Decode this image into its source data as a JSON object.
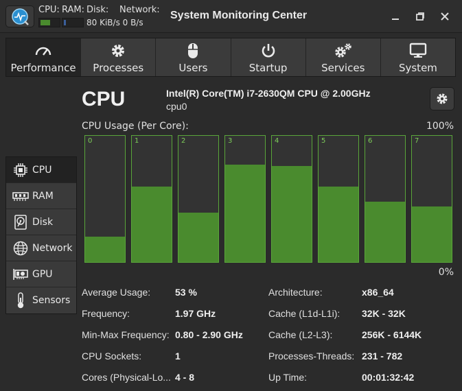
{
  "titlebar": {
    "title": "System Monitoring Center",
    "cpu_label": "CPU:",
    "ram_label": "RAM:",
    "disk_label": "Disk:",
    "network_label": "Network:",
    "network_rates": "80 KiB/s 0 B/s",
    "app_icon": "monitor-chart-icon",
    "cpu_mini_usage": 0.53,
    "ram_mini_usage": 0.1,
    "colors": {
      "cpu_mini": "#4a8b2e",
      "ram_mini": "#3b5f9a"
    }
  },
  "tabs": [
    {
      "label": "Performance",
      "icon": "gauge-icon",
      "active": true
    },
    {
      "label": "Processes",
      "icon": "gear-icon",
      "active": false
    },
    {
      "label": "Users",
      "icon": "mouse-icon",
      "active": false
    },
    {
      "label": "Startup",
      "icon": "power-icon",
      "active": false
    },
    {
      "label": "Services",
      "icon": "gears-icon",
      "active": false
    },
    {
      "label": "System",
      "icon": "monitor-icon",
      "active": false
    }
  ],
  "sidebar": [
    {
      "label": "CPU",
      "icon": "cpu-icon",
      "active": true
    },
    {
      "label": "RAM",
      "icon": "ram-icon",
      "active": false
    },
    {
      "label": "Disk",
      "icon": "disk-icon",
      "active": false
    },
    {
      "label": "Network",
      "icon": "globe-icon",
      "active": false
    },
    {
      "label": "GPU",
      "icon": "gpu-icon",
      "active": false
    },
    {
      "label": "Sensors",
      "icon": "thermometer-icon",
      "active": false
    }
  ],
  "main": {
    "title": "CPU",
    "model": "Intel(R) Core(TM) i7-2630QM CPU @ 2.00GHz",
    "device": "cpu0",
    "usage_label": "CPU Usage (Per Core):",
    "max_label": "100%",
    "min_label": "0%",
    "settings_icon": "gear-icon"
  },
  "chart_data": {
    "type": "bar",
    "categories": [
      "0",
      "1",
      "2",
      "3",
      "4",
      "5",
      "6",
      "7"
    ],
    "values": [
      20,
      60,
      39,
      77,
      76,
      60,
      48,
      44
    ],
    "ylim": [
      0,
      100
    ],
    "color": "#4a8b2e",
    "border_color": "#5aa63a"
  },
  "stats_left": [
    {
      "key": "Average Usage:",
      "value": "53 %"
    },
    {
      "key": "Frequency:",
      "value": "1.97 GHz"
    },
    {
      "key": "Min-Max Frequency:",
      "value": "0.80 - 2.90 GHz"
    },
    {
      "key": "CPU Sockets:",
      "value": "1"
    },
    {
      "key": "Cores (Physical-Lo...",
      "value": "4 - 8"
    }
  ],
  "stats_right": [
    {
      "key": "Architecture:",
      "value": "x86_64"
    },
    {
      "key": "Cache (L1d-L1i):",
      "value": "32K - 32K"
    },
    {
      "key": "Cache (L2-L3):",
      "value": "256K - 6144K"
    },
    {
      "key": "Processes-Threads:",
      "value": "231 - 782"
    },
    {
      "key": "Up Time:",
      "value": "00:01:32:42"
    }
  ]
}
